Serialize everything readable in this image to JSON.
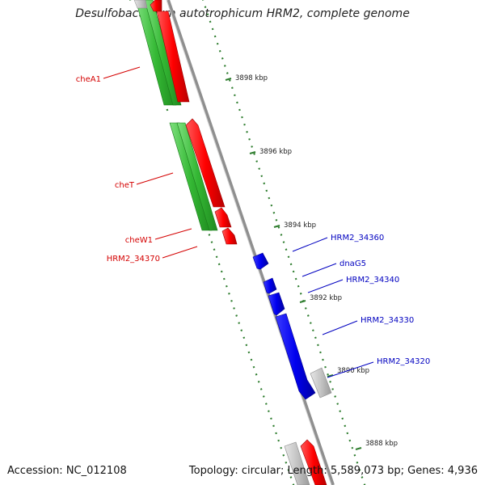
{
  "title": "Desulfobacterium autotrophicum HRM2, complete genome",
  "footer": {
    "accession": "Accession: NC_012108",
    "summary": "Topology: circular; Length: 5,589,073 bp; Genes: 4,936"
  },
  "colors": {
    "backbone": "#8c8c8c",
    "tick": "#2e7d2e",
    "forward_cds": "#ff0000",
    "reverse_cds": "#3cc23c",
    "blue_cds": "#0000ee",
    "gray_cds": "#c8c8c8",
    "red_label": "#d40000",
    "blue_label": "#0000c0"
  },
  "ticks": [
    "3898 kbp",
    "3896 kbp",
    "3894 kbp",
    "3892 kbp",
    "3890 kbp",
    "3888 kbp"
  ],
  "labels_left": [
    "cheA1",
    "cheT",
    "cheW1",
    "HRM2_34370"
  ],
  "labels_right": [
    "HRM2_34360",
    "dnaG5",
    "HRM2_34340",
    "HRM2_34330",
    "HRM2_34320"
  ]
}
